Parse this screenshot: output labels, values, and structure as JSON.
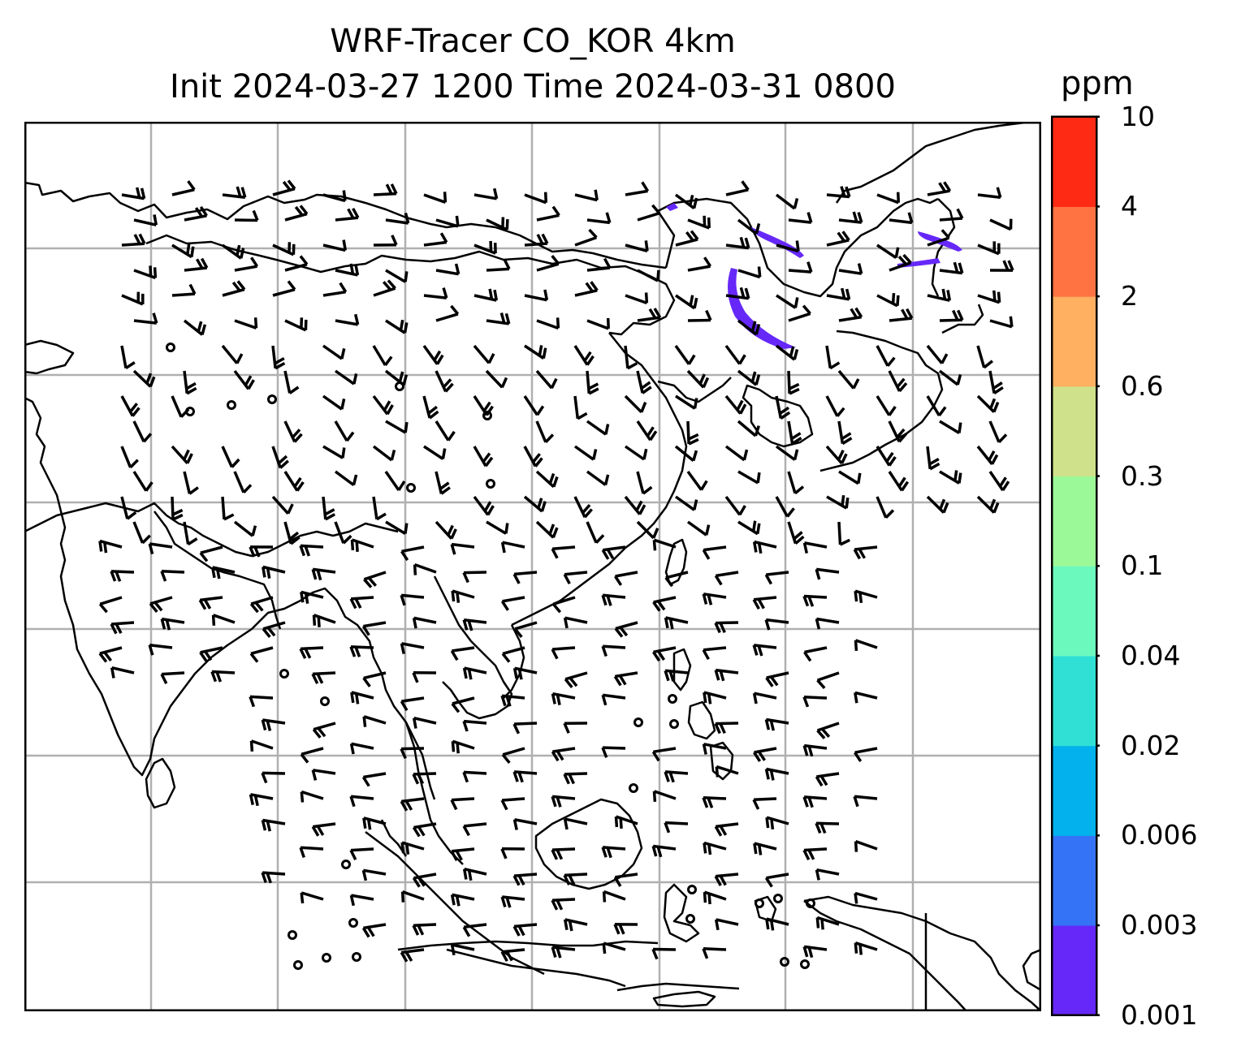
{
  "title": {
    "line1": "WRF-Tracer CO_KOR 4km",
    "line2": "Init 2024-03-27 1200 Time 2024-03-31 0800"
  },
  "colorbar": {
    "unit": "ppm",
    "levels": [
      "0.001",
      "0.003",
      "0.006",
      "0.02",
      "0.04",
      "0.1",
      "0.3",
      "0.6",
      "2",
      "4",
      "10"
    ],
    "colors": [
      "#6628f8",
      "#3473f6",
      "#03b1ed",
      "#31e0d5",
      "#6cf9be",
      "#9cf998",
      "#cfe18a",
      "#ffb061",
      "#ff7242",
      "#ff2a14"
    ]
  },
  "map": {
    "gridlines": true,
    "coastline_color": "#000000",
    "barb_color": "#000000",
    "tracer_color": "#6628f8"
  }
}
